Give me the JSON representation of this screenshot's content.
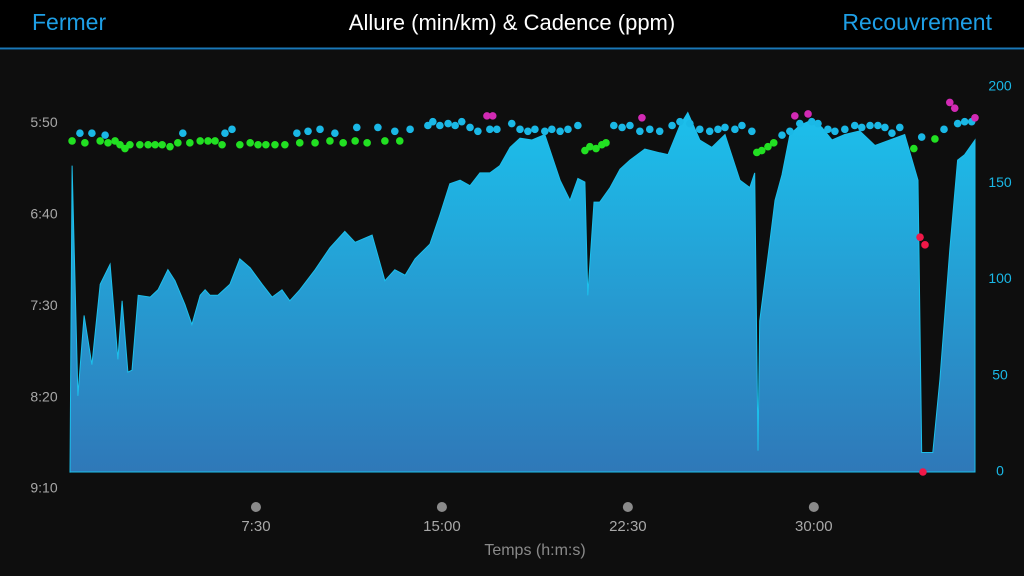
{
  "header": {
    "close": "Fermer",
    "title": "Allure (min/km) & Cadence (ppm)",
    "action": "Recouvrement"
  },
  "chart_data": {
    "type": "area",
    "xlabel": "Temps (h:m:s)",
    "xlim": [
      0,
      2190
    ],
    "xticks": [
      {
        "value": 450,
        "label": "7:30"
      },
      {
        "value": 900,
        "label": "15:00"
      },
      {
        "value": 1350,
        "label": "22:30"
      },
      {
        "value": 1800,
        "label": "30:00"
      }
    ],
    "ylim": [
      550,
      330
    ],
    "yticks": [
      {
        "value": 350,
        "label": "5:50"
      },
      {
        "value": 400,
        "label": "6:40"
      },
      {
        "value": 450,
        "label": "7:30"
      },
      {
        "value": 500,
        "label": "8:20"
      },
      {
        "value": 550,
        "label": "9:10"
      }
    ],
    "y2lim": [
      0,
      200
    ],
    "y2ticks": [
      0,
      50,
      100,
      150,
      200
    ],
    "series": [
      {
        "type": "area",
        "color": "#1cc0ec",
        "x": [
          0,
          5,
          19,
          34,
          53,
          73,
          97,
          116,
          126,
          140,
          150,
          165,
          194,
          213,
          237,
          254,
          278,
          295,
          315,
          327,
          339,
          358,
          387,
          411,
          436,
          465,
          489,
          513,
          532,
          556,
          593,
          605,
          629,
          665,
          690,
          731,
          762,
          786,
          811,
          835,
          871,
          895,
          919,
          944,
          968,
          992,
          1016,
          1040,
          1065,
          1089,
          1118,
          1149,
          1186,
          1210,
          1229,
          1246,
          1253,
          1268,
          1282,
          1307,
          1331,
          1355,
          1391,
          1427,
          1447,
          1476,
          1495,
          1524,
          1553,
          1585,
          1621,
          1645,
          1657,
          1665,
          1669,
          1694,
          1706,
          1723,
          1742,
          1766,
          1795,
          1819,
          1844,
          1875,
          1911,
          1948,
          1984,
          2020,
          2052,
          2061,
          2088,
          2105,
          2129,
          2148,
          2165,
          2190
        ],
        "values": [
          541,
          373,
          499,
          455,
          482,
          438,
          427,
          479,
          447,
          486,
          485,
          444,
          445,
          441,
          430,
          436,
          449,
          460,
          444,
          441,
          444,
          444,
          438,
          424,
          429,
          438,
          445,
          441,
          447,
          441,
          430,
          426,
          418,
          409,
          415,
          411,
          436,
          430,
          433,
          424,
          416,
          400,
          383,
          381,
          384,
          377,
          377,
          373,
          363,
          358,
          359,
          356,
          381,
          392,
          380,
          382,
          444,
          393,
          393,
          385,
          375,
          370,
          364,
          366,
          367,
          351,
          344,
          359,
          363,
          356,
          381,
          385,
          377,
          529,
          458,
          414,
          392,
          378,
          356,
          351,
          348,
          352,
          359,
          356,
          354,
          362,
          359,
          356,
          381,
          530,
          530,
          490,
          419,
          370,
          367,
          359
        ]
      },
      {
        "type": "scatter",
        "axis": "y2",
        "color": "#22e022",
        "x": [
          5,
          36,
          73,
          92,
          109,
          121,
          133,
          145,
          169,
          189,
          206,
          223,
          242,
          261,
          290,
          315,
          334,
          351,
          368,
          411,
          436,
          455,
          474,
          496,
          520,
          556,
          593,
          629,
          661,
          690,
          719,
          762,
          798,
          1246,
          1258,
          1273,
          1287,
          1297,
          1662,
          1674,
          1689,
          1703,
          2042,
          2093
        ],
        "values": [
          172,
          171,
          172,
          171,
          172,
          170,
          168,
          170,
          170,
          170,
          170,
          170,
          169,
          171,
          171,
          172,
          172,
          172,
          170,
          170,
          171,
          170,
          170,
          170,
          170,
          171,
          171,
          172,
          171,
          172,
          171,
          172,
          172,
          167,
          169,
          168,
          170,
          171,
          166,
          167,
          169,
          171,
          168,
          173
        ]
      },
      {
        "type": "scatter",
        "axis": "y2",
        "color": "#1ab8e6",
        "x": [
          24,
          53,
          85,
          273,
          375,
          392,
          549,
          576,
          605,
          641,
          694,
          745,
          786,
          823,
          866,
          878,
          895,
          915,
          932,
          948,
          968,
          987,
          1016,
          1033,
          1069,
          1089,
          1108,
          1125,
          1149,
          1166,
          1186,
          1205,
          1229,
          1316,
          1336,
          1355,
          1379,
          1403,
          1427,
          1457,
          1476,
          1500,
          1524,
          1548,
          1568,
          1585,
          1609,
          1626,
          1650,
          1723,
          1742,
          1766,
          1795,
          1810,
          1834,
          1851,
          1875,
          1899,
          1916,
          1936,
          1955,
          1972,
          1989,
          2008,
          2061,
          2115,
          2148,
          2165,
          2182
        ],
        "values": [
          176,
          176,
          175,
          176,
          176,
          178,
          176,
          177,
          178,
          176,
          179,
          179,
          177,
          178,
          180,
          182,
          180,
          181,
          180,
          182,
          179,
          177,
          178,
          178,
          181,
          178,
          177,
          178,
          177,
          178,
          177,
          178,
          180,
          180,
          179,
          180,
          177,
          178,
          177,
          180,
          182,
          181,
          178,
          177,
          178,
          179,
          178,
          180,
          177,
          175,
          177,
          181,
          182,
          181,
          178,
          177,
          178,
          180,
          179,
          180,
          180,
          179,
          176,
          179,
          174,
          178,
          181,
          182,
          182
        ]
      },
      {
        "type": "scatter",
        "axis": "y2",
        "color": "#d22ab4",
        "x": [
          1009,
          1023,
          1384,
          1754,
          1786,
          2129,
          2141,
          2190
        ],
        "values": [
          185,
          185,
          184,
          185,
          186,
          192,
          189,
          184
        ]
      },
      {
        "type": "scatter",
        "axis": "y2",
        "color": "#f01848",
        "x": [
          2057,
          2069,
          2064
        ],
        "values": [
          122,
          118,
          0
        ]
      }
    ]
  }
}
